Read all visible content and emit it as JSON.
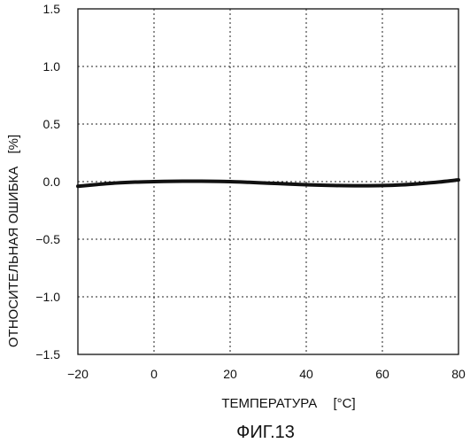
{
  "chart_data": {
    "type": "line",
    "title": "",
    "caption": "ФИГ.13",
    "xlabel": "ТЕМПЕРАТУРА",
    "xunit": "[°C]",
    "ylabel": "ОТНОСИТЕЛЬНАЯ ОШИБКА",
    "yunit": "[%]",
    "xlim": [
      -20,
      80
    ],
    "ylim": [
      -1.5,
      1.5
    ],
    "x_ticks": [
      -20,
      0,
      20,
      40,
      60,
      80
    ],
    "x_tick_labels": [
      "−20",
      "0",
      "20",
      "40",
      "60",
      "80"
    ],
    "y_ticks": [
      1.5,
      1.0,
      0.5,
      0.0,
      -0.5,
      -1.0,
      -1.5
    ],
    "y_tick_labels": [
      "1.5",
      "1.0",
      "0.5",
      "0.0",
      "−0.5",
      "−1.0",
      "−1.5"
    ],
    "grid": true,
    "grid_style": "dotted",
    "line_color": "#111111",
    "series": [
      {
        "x": [
          -20,
          -15,
          -10,
          -5,
          0,
          5,
          10,
          15,
          20,
          25,
          30,
          35,
          40,
          45,
          50,
          55,
          60,
          65,
          70,
          75,
          80
        ],
        "y": [
          -0.04,
          -0.025,
          -0.012,
          -0.004,
          0.0,
          0.003,
          0.004,
          0.003,
          0.0,
          -0.006,
          -0.013,
          -0.02,
          -0.027,
          -0.032,
          -0.035,
          -0.036,
          -0.034,
          -0.028,
          -0.017,
          -0.003,
          0.015
        ]
      }
    ]
  }
}
